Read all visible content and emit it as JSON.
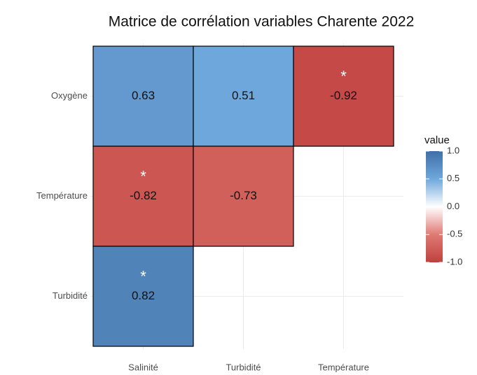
{
  "chart_data": {
    "type": "heatmap",
    "title": "Matrice de corrélation variables Charente 2022",
    "x_categories": [
      "Salinité",
      "Turbidité",
      "Température"
    ],
    "y_categories": [
      "Oxygène",
      "Température",
      "Turbidité"
    ],
    "values": [
      [
        0.63,
        0.51,
        -0.92
      ],
      [
        -0.82,
        -0.73,
        null
      ],
      [
        0.82,
        null,
        null
      ]
    ],
    "annotations": [
      [
        null,
        null,
        "*"
      ],
      [
        "*",
        null,
        null
      ],
      [
        "*",
        null,
        null
      ]
    ],
    "legend_title": "value",
    "clim": [
      -1,
      1
    ],
    "cticks": [
      {
        "value": 1,
        "label": "1.0"
      },
      0.5,
      {
        "value": 0,
        "label": "0.0"
      },
      -0.5,
      {
        "value": -1,
        "label": "-1.0"
      }
    ],
    "colors": [
      "#c0413e",
      "#e07a74",
      "#ffffff",
      "#6fa8dc",
      "#3f6fa6"
    ],
    "grid": true,
    "legend_position": "right"
  }
}
